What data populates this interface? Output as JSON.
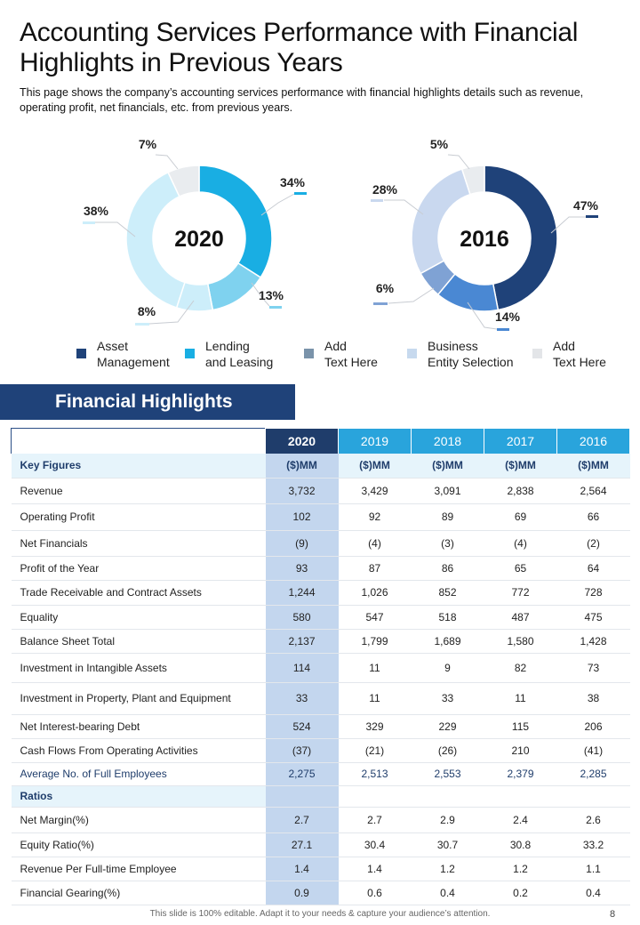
{
  "page": {
    "title": "Accounting Services Performance with Financial Highlights in Previous Years",
    "subtitle": "This page shows the company’s accounting services performance  with financial highlights details such as revenue,  operating profit, net financials, etc. from previous  years.",
    "footer": "This slide is 100% editable.  Adapt it to your needs & capture your audience’s attention.",
    "page_number": "8"
  },
  "colors": {
    "dark_navy": "#1f4279",
    "cyan": "#19aee3",
    "light_cyan": "#7fd2ef",
    "pale_cyan": "#cdeefa",
    "mid_blue": "#4a88d3",
    "steel_blue": "#7fa2d4",
    "pale_blue": "#c9d8ef",
    "light_grey": "#e9ecef",
    "legend_steel": "#7a93aa",
    "legend_pale": "#c7d9ee",
    "legend_grey": "#e3e5e8"
  },
  "legend": [
    {
      "label": "Asset\nManagement",
      "color": "#1f4279"
    },
    {
      "label": "Lending\nand Leasing",
      "color": "#19aee3"
    },
    {
      "label": "Add\nText Here",
      "color": "#7a93aa"
    },
    {
      "label": "Business\nEntity Selection",
      "color": "#c7d9ee"
    },
    {
      "label": "Add\nText Here",
      "color": "#e3e5e8"
    }
  ],
  "section_title": "Financial Highlights",
  "chart_data": [
    {
      "type": "pie",
      "donut": true,
      "title": "2020",
      "slices": [
        {
          "label": "34%",
          "value": 34,
          "color": "#19aee3"
        },
        {
          "label": "13%",
          "value": 13,
          "color": "#7fd2ef"
        },
        {
          "label": "8%",
          "value": 8,
          "color": "#cdeefa"
        },
        {
          "label": "38%",
          "value": 38,
          "color": "#cdeefa"
        },
        {
          "label": "7%",
          "value": 7,
          "color": "#e9ecef"
        }
      ]
    },
    {
      "type": "pie",
      "donut": true,
      "title": "2016",
      "slices": [
        {
          "label": "47%",
          "value": 47,
          "color": "#1f4279"
        },
        {
          "label": "14%",
          "value": 14,
          "color": "#4a88d3"
        },
        {
          "label": "6%",
          "value": 6,
          "color": "#7fa2d4"
        },
        {
          "label": "28%",
          "value": 28,
          "color": "#c9d8ef"
        },
        {
          "label": "5%",
          "value": 5,
          "color": "#e9ecef"
        }
      ]
    }
  ],
  "table": {
    "years": [
      "2020",
      "2019",
      "2018",
      "2017",
      "2016"
    ],
    "units_label": "Key Figures",
    "units": [
      "($)MM",
      "($)MM",
      "($)MM",
      "($)MM",
      "($)MM"
    ],
    "rows": [
      {
        "label": "Revenue",
        "values": [
          "3,732",
          "3,429",
          "3,091",
          "2,838",
          "2,564"
        ]
      },
      {
        "label": "Operating Profit",
        "values": [
          "102",
          "92",
          "89",
          "69",
          "66"
        ]
      },
      {
        "label": "Net Financials",
        "values": [
          "(9)",
          "(4)",
          "(3)",
          "(4)",
          "(2)"
        ]
      },
      {
        "label": "Profit of the Year",
        "values": [
          "93",
          "87",
          "86",
          "65",
          "64"
        ]
      },
      {
        "label": "Trade Receivable and Contract  Assets",
        "values": [
          "1,244",
          "1,026",
          "852",
          "772",
          "728"
        ]
      },
      {
        "label": "Equality",
        "values": [
          "580",
          "547",
          "518",
          "487",
          "475"
        ]
      },
      {
        "label": "Balance Sheet Total",
        "values": [
          "2,137",
          "1,799",
          "1,689",
          "1,580",
          "1,428"
        ]
      },
      {
        "label": "Investment in Intangible Assets",
        "values": [
          "114",
          "11",
          "9",
          "82",
          "73"
        ]
      },
      {
        "label": "Investment in Property, Plant and Equipment",
        "values": [
          "33",
          "11",
          "33",
          "11",
          "38"
        ]
      },
      {
        "label": "Net Interest-bearing Debt",
        "values": [
          "524",
          "329",
          "229",
          "115",
          "206"
        ]
      },
      {
        "label": "Cash Flows From Operating Activities",
        "values": [
          "(37)",
          "(21)",
          "(26)",
          "210",
          "(41)"
        ]
      }
    ],
    "employees_row": {
      "label": "Average  No. of Full Employees",
      "values": [
        "2,275",
        "2,513",
        "2,553",
        "2,379",
        "2,285"
      ]
    },
    "ratios_label": "Ratios",
    "ratio_rows": [
      {
        "label": "Net Margin(%)",
        "values": [
          "2.7",
          "2.7",
          "2.9",
          "2.4",
          "2.6"
        ]
      },
      {
        "label": "Equity Ratio(%)",
        "values": [
          "27.1",
          "30.4",
          "30.7",
          "30.8",
          "33.2"
        ]
      },
      {
        "label": "Revenue Per Full-time Employee",
        "values": [
          "1.4",
          "1.4",
          "1.2",
          "1.2",
          "1.1"
        ]
      },
      {
        "label": "Financial Gearing(%)",
        "values": [
          "0.9",
          "0.6",
          "0.4",
          "0.2",
          "0.4"
        ]
      }
    ]
  }
}
